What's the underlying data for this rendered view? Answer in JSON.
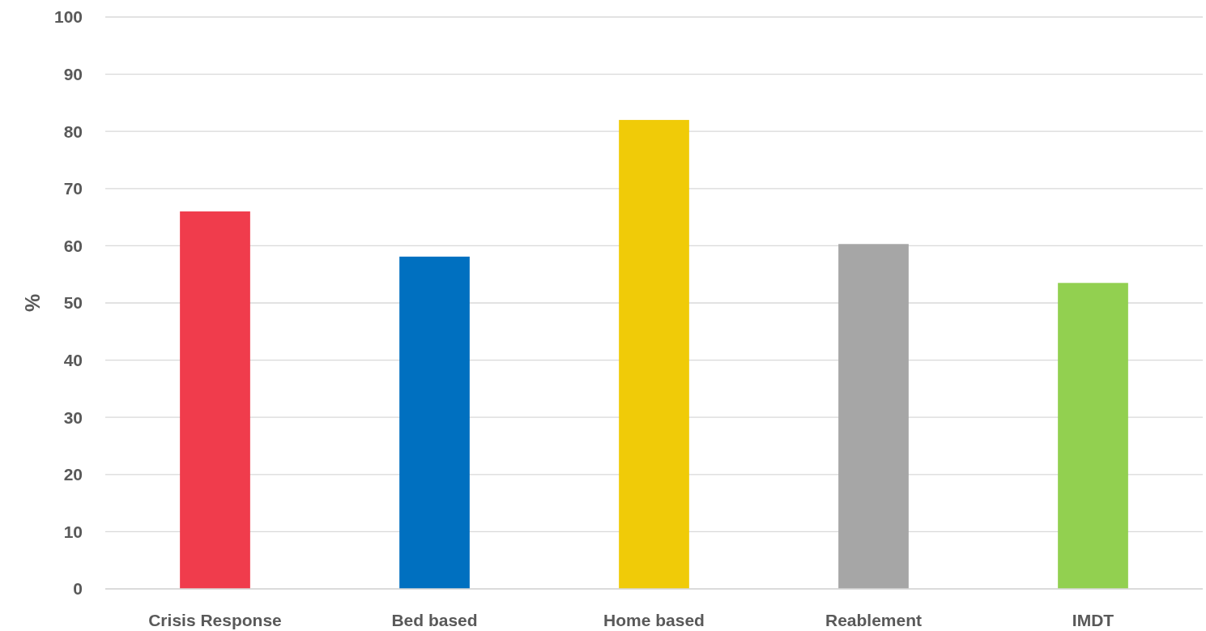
{
  "chart_data": {
    "type": "bar",
    "ylabel": "%",
    "categories": [
      "Crisis Response",
      "Bed based",
      "Home based",
      "Reablement",
      "IMDT"
    ],
    "values": [
      66,
      58.1,
      82,
      60.3,
      53.5
    ],
    "colors": [
      "#f03c4c",
      "#0070c0",
      "#f0cb08",
      "#a6a6a6",
      "#92d050"
    ],
    "ylim": [
      0,
      100
    ],
    "yticks": [
      0,
      10,
      20,
      30,
      40,
      50,
      60,
      70,
      80,
      90,
      100
    ],
    "grid": "y"
  }
}
